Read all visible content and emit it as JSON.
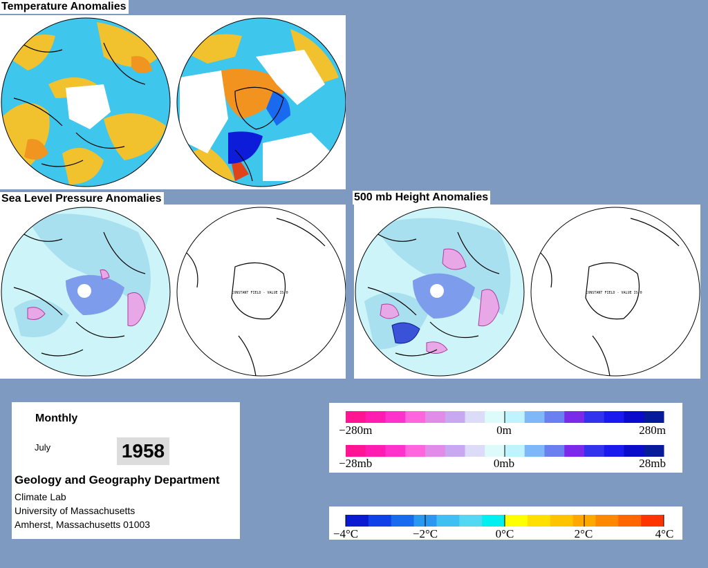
{
  "titles": {
    "temperature": "Temperature Anomalies",
    "slp": "Sea Level Pressure Anomalies",
    "height": "500 mb Height Anomalies"
  },
  "maps": {
    "constant_field_text": "CONSTANT FIELD - VALUE IS 0"
  },
  "info": {
    "period": "Monthly",
    "month": "July",
    "year": "1958",
    "department": "Geology and Geography Department",
    "lines": [
      "Climate Lab",
      "University of Massachusetts",
      "Amherst, Massachusetts 01003"
    ]
  },
  "legends": {
    "height": {
      "min": "−280m",
      "mid": "0m",
      "max": "280m"
    },
    "pressure": {
      "min": "−28mb",
      "mid": "0mb",
      "max": "28mb"
    },
    "temperature": {
      "ticks": [
        "−4°C",
        "−2°C",
        "0°C",
        "2°C",
        "4°C"
      ]
    }
  },
  "colors": {
    "background": "#7f9ac0",
    "land_outline": "#000000",
    "temp_warm": "#f2c12e",
    "temp_cool": "#3ac6ea",
    "pos_anomaly_pink": "#e8a8e8",
    "neg_anomaly_blue": "#5a74e0",
    "neutral_light": "#cdf4f8"
  },
  "ramps": {
    "height_pressure": [
      "#ff1493",
      "#ff1cb0",
      "#ff33cc",
      "#ff66dd",
      "#e08ce8",
      "#c8a8f0",
      "#dcdcf8",
      "#ddfbfb",
      "#bff4ff",
      "#7fb8f8",
      "#6a80f0",
      "#7a2ae8",
      "#3333ee",
      "#1a1aee",
      "#0b0bcc",
      "#061a9a"
    ],
    "temperature": [
      "#0a1ad0",
      "#1040e8",
      "#1a6af0",
      "#2a98f0",
      "#3ec0f0",
      "#52d8f0",
      "#00f0f0",
      "#ffff00",
      "#ffe000",
      "#ffc400",
      "#ffa800",
      "#ff8800",
      "#ff6600",
      "#ff3300"
    ]
  }
}
